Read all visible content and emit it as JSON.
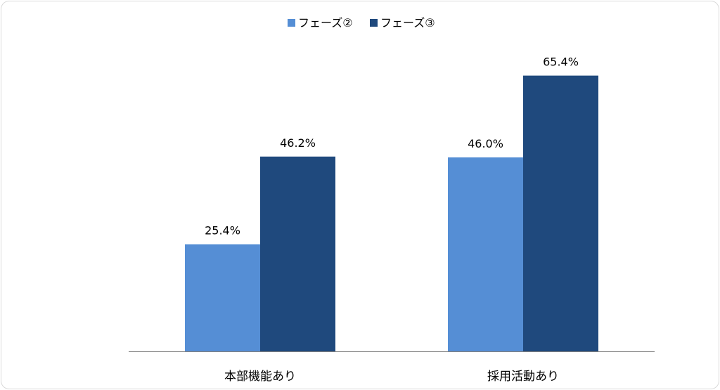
{
  "chart_data": {
    "type": "bar",
    "categories": [
      "本部機能あり",
      "採用活動あり"
    ],
    "series": [
      {
        "name": "フェーズ②",
        "values": [
          25.4,
          46.0
        ],
        "color": "#558ed5"
      },
      {
        "name": "フェーズ③",
        "values": [
          46.2,
          65.4
        ],
        "color": "#1f497d"
      }
    ],
    "data_labels": [
      [
        "25.4%",
        "46.0%"
      ],
      [
        "46.2%",
        "65.4%"
      ]
    ],
    "ylim": [
      0,
      75
    ],
    "grid": false,
    "legend_position": "top-center",
    "axis_color": "#808080"
  }
}
